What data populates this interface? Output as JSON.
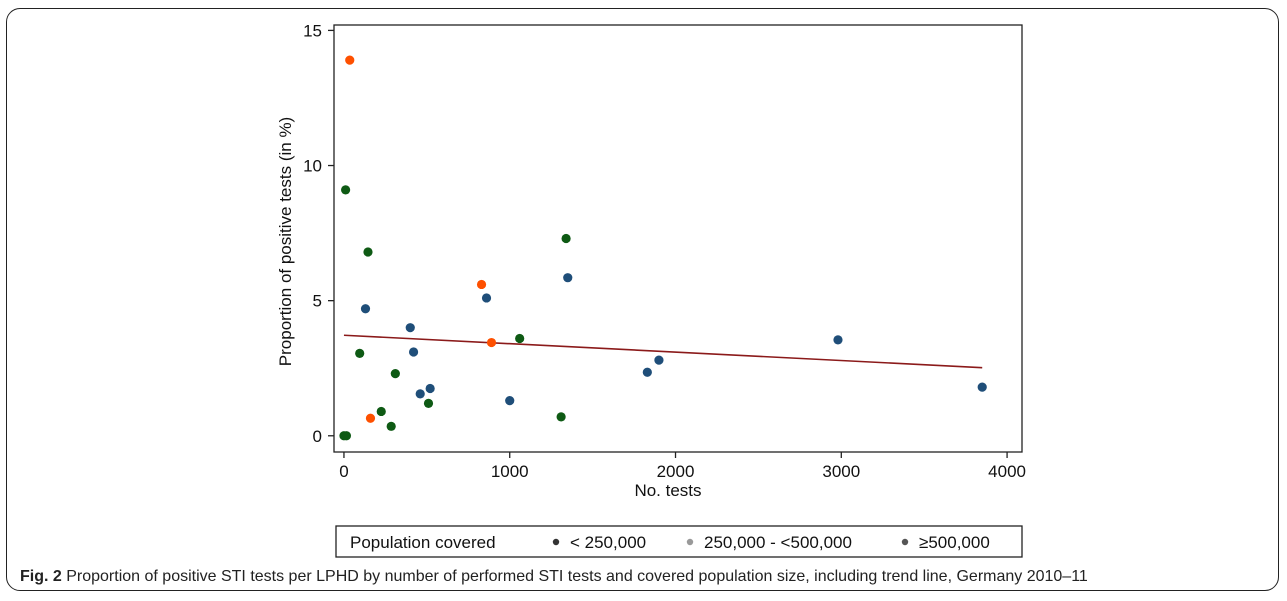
{
  "figure": {
    "caption_label": "Fig. 2",
    "caption_text": "Proportion of positive STI tests per LPHD by number of performed STI tests and covered population size, including trend line, Germany 2010–11"
  },
  "colors": {
    "lt250k": "#1f4e79",
    "mid": "#fe5000",
    "gte500k": "#0e5a14",
    "trend": "#8b1a1a"
  },
  "chart_data": {
    "type": "scatter",
    "xlabel": "No. tests",
    "ylabel": "Proportion of positive tests (in %)",
    "xlim": [
      -60,
      4090
    ],
    "ylim": [
      -0.6,
      15.2
    ],
    "xticks": [
      0,
      1000,
      2000,
      3000,
      4000
    ],
    "yticks": [
      0,
      5,
      10,
      15
    ],
    "grid": false,
    "legend": {
      "title": "Population covered",
      "placement": "bottom",
      "entries": [
        "< 250,000",
        "250,000 - <500,000",
        "≥500,000"
      ]
    },
    "series": [
      {
        "name": "< 250,000",
        "color": "#1f4e79",
        "points": [
          {
            "x": 130,
            "y": 4.7
          },
          {
            "x": 400,
            "y": 4.0
          },
          {
            "x": 420,
            "y": 3.1
          },
          {
            "x": 460,
            "y": 1.55
          },
          {
            "x": 520,
            "y": 1.75
          },
          {
            "x": 860,
            "y": 5.1
          },
          {
            "x": 1000,
            "y": 1.3
          },
          {
            "x": 1350,
            "y": 5.85
          },
          {
            "x": 1830,
            "y": 2.35
          },
          {
            "x": 1900,
            "y": 2.8
          },
          {
            "x": 2980,
            "y": 3.55
          },
          {
            "x": 3850,
            "y": 1.8
          }
        ]
      },
      {
        "name": "250,000 - <500,000",
        "color": "#fe5000",
        "points": [
          {
            "x": 35,
            "y": 13.9
          },
          {
            "x": 160,
            "y": 0.65
          },
          {
            "x": 830,
            "y": 5.6
          },
          {
            "x": 890,
            "y": 3.45
          }
        ]
      },
      {
        "name": "≥500,000",
        "color": "#0e5a14",
        "points": [
          {
            "x": 0,
            "y": 0
          },
          {
            "x": 15,
            "y": 0
          },
          {
            "x": 10,
            "y": 9.1
          },
          {
            "x": 95,
            "y": 3.05
          },
          {
            "x": 145,
            "y": 6.8
          },
          {
            "x": 225,
            "y": 0.9
          },
          {
            "x": 285,
            "y": 0.35
          },
          {
            "x": 310,
            "y": 2.3
          },
          {
            "x": 510,
            "y": 1.2
          },
          {
            "x": 1060,
            "y": 3.6
          },
          {
            "x": 1310,
            "y": 0.7
          },
          {
            "x": 1340,
            "y": 7.3
          }
        ]
      }
    ],
    "trend_line": {
      "x": [
        0,
        3850
      ],
      "y": [
        3.72,
        2.52
      ]
    }
  }
}
